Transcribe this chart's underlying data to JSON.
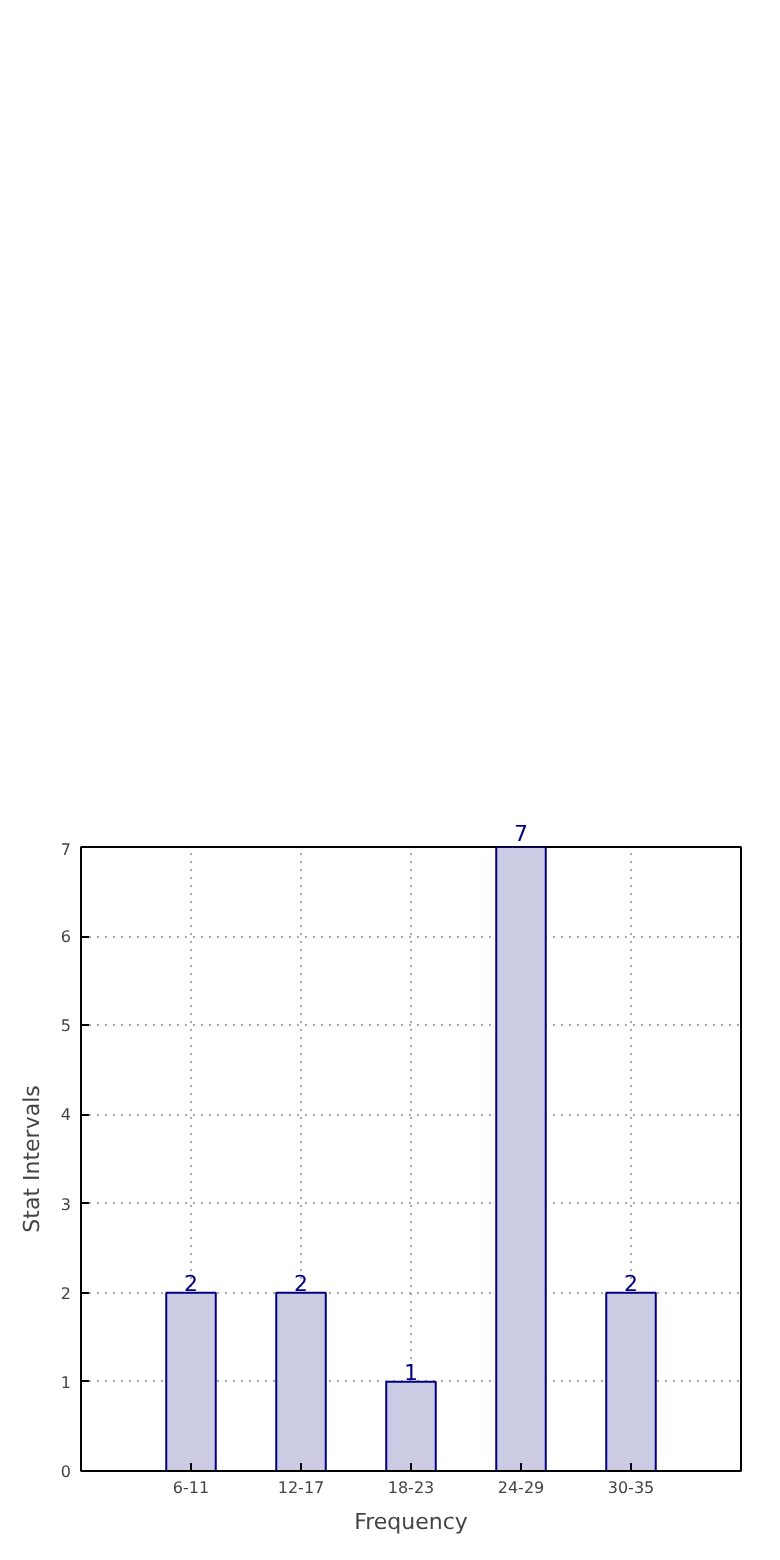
{
  "chart_data": {
    "type": "bar",
    "xlabel": "Frequency",
    "ylabel": "Stat Intervals",
    "categories": [
      "6-11",
      "12-17",
      "18-23",
      "24-29",
      "30-35"
    ],
    "values": [
      2,
      2,
      1,
      7,
      2
    ],
    "color": "#cbcbe3",
    "ylim": [
      0,
      7
    ],
    "yticks": [
      0,
      1,
      2,
      3,
      4,
      5,
      6,
      7
    ],
    "grid": true,
    "data_labels": true
  }
}
